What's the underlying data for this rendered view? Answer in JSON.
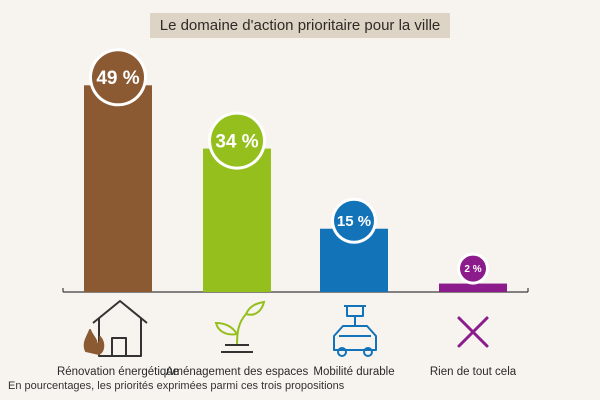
{
  "chart_data": {
    "type": "bar",
    "title": "Le domaine d'action prioritaire pour la ville",
    "categories": [
      "Rénovation énergétique",
      "Aménagement des espaces",
      "Mobilité durable",
      "Rien de tout cela"
    ],
    "values": [
      49,
      34,
      15,
      2
    ],
    "value_labels": [
      "49 %",
      "34 %",
      "15 %",
      "2 %"
    ],
    "colors": [
      "#8b5a33",
      "#95bf1d",
      "#1273b8",
      "#8c1c8b"
    ],
    "icons": [
      "house-fire-icon",
      "seedling-icon",
      "electric-car-icon",
      "cross-icon"
    ],
    "ylim": [
      0,
      55
    ],
    "xlabel": "",
    "ylabel": "",
    "grid": false
  },
  "footnote": "En pourcentages, les priorités exprimées parmi ces trois propositions"
}
